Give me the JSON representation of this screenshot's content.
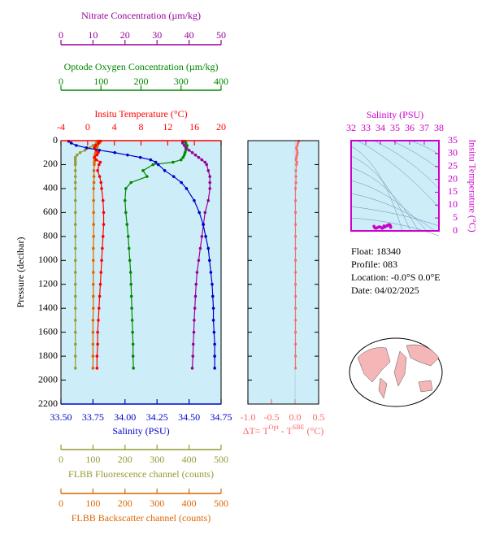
{
  "chart_data": [
    {
      "type": "profile",
      "y_label": "Pressure (decibar)",
      "ylim": [
        2200,
        0
      ],
      "yticks": [
        0,
        200,
        400,
        600,
        800,
        1000,
        1200,
        1400,
        1600,
        1800,
        2000,
        2200
      ],
      "pressure": [
        5,
        20,
        40,
        60,
        80,
        100,
        120,
        140,
        160,
        180,
        200,
        250,
        300,
        350,
        400,
        500,
        600,
        700,
        800,
        900,
        1000,
        1100,
        1200,
        1300,
        1400,
        1500,
        1600,
        1700,
        1800,
        1900
      ],
      "axes": {
        "nitrate": {
          "label": "Nitrate Concentration (µm/kg)",
          "color": "#990099",
          "xlim": [
            0,
            50
          ],
          "xticks": [
            0,
            10,
            20,
            30,
            40,
            50
          ]
        },
        "oxygen": {
          "label": "Optode Oxygen Concentration (µm/kg)",
          "color": "#008800",
          "xlim": [
            0,
            400
          ],
          "xticks": [
            0,
            100,
            200,
            300,
            400
          ]
        },
        "temperature": {
          "label": "Insitu Temperature (°C)",
          "color": "#ff0000",
          "xlim": [
            -4,
            20
          ],
          "xticks": [
            -4,
            0,
            4,
            8,
            12,
            16,
            20
          ]
        },
        "salinity": {
          "label": "Salinity (PSU)",
          "color": "#0000cc",
          "xlim": [
            33.5,
            34.75
          ],
          "xticks": [
            {
              "value": 33.5,
              "label": "33.50"
            },
            33.75,
            {
              "value": 34.0,
              "label": "34.00"
            },
            34.25,
            {
              "value": 34.5,
              "label": "34.50"
            },
            34.75
          ]
        },
        "fluorescence": {
          "label": "FLBB Fluorescence channel (counts)",
          "color": "#999933",
          "xlim": [
            0,
            500
          ],
          "xticks": [
            0,
            100,
            200,
            300,
            400,
            500
          ]
        },
        "backscatter": {
          "label": "FLBB Backscatter channel (counts)",
          "color": "#dd6600",
          "xlim": [
            0,
            500
          ],
          "xticks": [
            0,
            100,
            200,
            300,
            400,
            500
          ]
        }
      },
      "series": [
        {
          "axis": "fluorescence",
          "color": "#999933",
          "values": [
            115,
            110,
            100,
            90,
            75,
            60,
            50,
            45,
            45,
            45,
            45,
            45,
            45,
            45,
            45,
            45,
            45,
            45,
            45,
            45,
            45,
            45,
            45,
            45,
            45,
            45,
            45,
            45,
            45,
            45
          ]
        },
        {
          "axis": "backscatter",
          "color": "#dd6600",
          "values": [
            125,
            120,
            115,
            112,
            110,
            108,
            106,
            105,
            105,
            104,
            104,
            103,
            103,
            103,
            102,
            102,
            102,
            102,
            102,
            101,
            101,
            101,
            101,
            101,
            101,
            100,
            100,
            100,
            100,
            100
          ]
        },
        {
          "axis": "oxygen",
          "color": "#008800",
          "values": [
            310,
            312,
            315,
            314,
            312,
            310,
            308,
            305,
            300,
            280,
            230,
            205,
            215,
            175,
            162,
            160,
            162,
            165,
            168,
            170,
            172,
            174,
            175,
            176,
            177,
            178,
            179,
            180,
            180,
            181
          ]
        },
        {
          "axis": "nitrate",
          "color": "#990099",
          "values": [
            38,
            38,
            38.5,
            39,
            40,
            41,
            42,
            43,
            44,
            45,
            45.5,
            46,
            46.5,
            46.5,
            46.5,
            46,
            45,
            44.5,
            44,
            43.5,
            43,
            42.5,
            42.2,
            42,
            41.8,
            41.6,
            41.5,
            41.3,
            41.2,
            41
          ]
        },
        {
          "axis": "temperature",
          "color": "#ff0000",
          "values": [
            1.8,
            1.6,
            1.2,
            1.0,
            1.3,
            1.6,
            1.4,
            1.0,
            1.3,
            1.9,
            1.7,
            1.5,
            1.8,
            2.0,
            2.1,
            2.3,
            2.4,
            2.4,
            2.3,
            2.2,
            2.1,
            2.0,
            1.9,
            1.8,
            1.7,
            1.6,
            1.5,
            1.5,
            1.4,
            1.4
          ]
        },
        {
          "axis": "salinity",
          "color": "#0000cc",
          "values": [
            33.56,
            33.58,
            33.62,
            33.7,
            33.8,
            33.92,
            34.02,
            34.12,
            34.2,
            34.24,
            34.26,
            34.31,
            34.38,
            34.44,
            34.48,
            34.54,
            34.58,
            34.61,
            34.63,
            34.65,
            34.66,
            34.67,
            34.68,
            34.685,
            34.69,
            34.69,
            34.695,
            34.7,
            34.7,
            34.7
          ]
        }
      ]
    },
    {
      "type": "delta",
      "x_label": [
        "ΔT= T",
        "Opt",
        " - T",
        "SBE",
        " (°C)"
      ],
      "color": "#ff6666",
      "xlim": [
        -1.0,
        0.5
      ],
      "xticks": [
        {
          "value": -1.0,
          "label": "-1.0"
        },
        -0.5,
        {
          "value": 0.0,
          "label": "0.0"
        },
        0.5
      ],
      "ylim": [
        2200,
        0
      ],
      "yticks": [
        0,
        200,
        400,
        600,
        800,
        1000,
        1200,
        1400,
        1600,
        1800,
        2000,
        2200
      ],
      "pressure": [
        5,
        20,
        40,
        60,
        80,
        100,
        120,
        140,
        160,
        180,
        200,
        250,
        300,
        350,
        400,
        500,
        600,
        700,
        800,
        900,
        1000,
        1100,
        1200,
        1300,
        1400,
        1500,
        1600,
        1700,
        1800,
        1900
      ],
      "values": [
        0.08,
        0.06,
        0.05,
        0.03,
        0.04,
        0.05,
        0.04,
        0.03,
        0.02,
        0.04,
        0.03,
        0.02,
        0.02,
        0.02,
        0.01,
        0.01,
        0.01,
        0.01,
        0.01,
        0.01,
        0.01,
        0.01,
        0.01,
        0.01,
        0.01,
        0.01,
        0.01,
        0.01,
        0.01,
        0.01
      ]
    },
    {
      "type": "scatter",
      "x_label": "Salinity (PSU)",
      "y_label": "Insitu Temperature (°C)",
      "color": "#cc00cc",
      "xlim": [
        32,
        38
      ],
      "xticks": [
        32,
        33,
        34,
        35,
        36,
        37,
        38
      ],
      "ylim": [
        0,
        35
      ],
      "yticks": [
        0,
        5,
        10,
        15,
        20,
        25,
        30,
        35
      ],
      "x": [
        33.56,
        33.58,
        33.62,
        33.7,
        33.8,
        33.92,
        34.02,
        34.12,
        34.2,
        34.24,
        34.26,
        34.31,
        34.38,
        34.44,
        34.48,
        34.54,
        34.58,
        34.61,
        34.63,
        34.65,
        34.66,
        34.67,
        34.68,
        34.685,
        34.69,
        34.69,
        34.695,
        34.7,
        34.7,
        34.7
      ],
      "y": [
        1.8,
        1.6,
        1.2,
        1.0,
        1.3,
        1.6,
        1.4,
        1.0,
        1.3,
        1.9,
        1.7,
        1.5,
        1.8,
        2.0,
        2.1,
        2.3,
        2.4,
        2.4,
        2.3,
        2.2,
        2.1,
        2.0,
        1.9,
        1.8,
        1.7,
        1.6,
        1.5,
        1.5,
        1.4,
        1.4
      ]
    }
  ],
  "info": {
    "float": "Float:  18340",
    "profile": "Profile:  083",
    "location": "Location:  -0.0°S   0.0°E",
    "date": "Date:  04/02/2025"
  }
}
